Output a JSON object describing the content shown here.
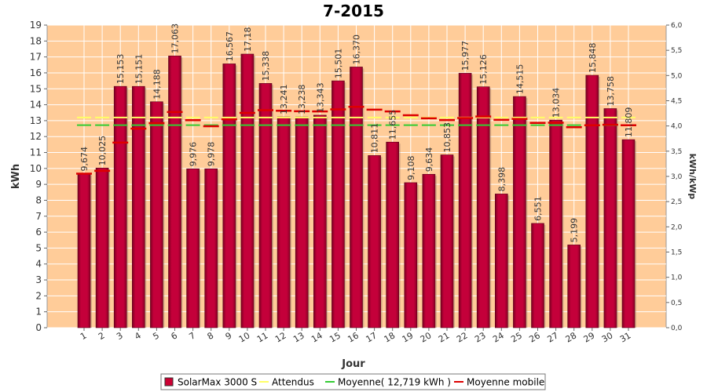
{
  "chart_data": {
    "type": "bar",
    "title": "7-2015",
    "xlabel": "Jour",
    "ylabel": "kWh",
    "ylabel_right": "kWh/kWp",
    "ylim": [
      0,
      19
    ],
    "ylim_right": [
      0.0,
      6.0
    ],
    "yticks": [
      "0",
      "1",
      "2",
      "3",
      "4",
      "5",
      "6",
      "7",
      "8",
      "9",
      "10",
      "11",
      "12",
      "13",
      "14",
      "15",
      "16",
      "17",
      "18",
      "19"
    ],
    "yticks_right": [
      "0,0",
      "0,5",
      "1,0",
      "1,5",
      "2,0",
      "2,5",
      "3,0",
      "3,5",
      "4,0",
      "4,5",
      "5,0",
      "5,5",
      "6,0"
    ],
    "categories": [
      "1",
      "2",
      "3",
      "4",
      "5",
      "6",
      "7",
      "8",
      "9",
      "10",
      "11",
      "12",
      "13",
      "14",
      "15",
      "16",
      "17",
      "18",
      "19",
      "20",
      "21",
      "22",
      "23",
      "24",
      "25",
      "26",
      "27",
      "28",
      "29",
      "30",
      "31"
    ],
    "series": [
      {
        "name": "SolarMax 3000 S",
        "kind": "bar",
        "color": "#cc0033",
        "values": [
          9.674,
          10.025,
          15.153,
          15.151,
          14.188,
          17.063,
          9.976,
          9.978,
          16.567,
          17.18,
          15.338,
          13.241,
          13.238,
          13.343,
          15.501,
          16.37,
          10.811,
          11.655,
          9.108,
          9.634,
          10.853,
          15.977,
          15.126,
          8.398,
          14.515,
          6.551,
          13.034,
          5.199,
          15.848,
          13.758,
          11.809
        ],
        "labels": [
          "9,674",
          "10,025",
          "15,153",
          "15,151",
          "14,188",
          "17,063",
          "9,976",
          "9,978",
          "16,567",
          "17,18",
          "15,338",
          "13,241",
          "13,238",
          "13,343",
          "15,501",
          "16,370",
          "10,811",
          "11,655",
          "9,108",
          "9,634",
          "10,853",
          "15,977",
          "15,126",
          "8,398",
          "14,515",
          "6,551",
          "13,034",
          "5,199",
          "15,848",
          "13,758",
          "11,809"
        ]
      },
      {
        "name": "Attendus",
        "kind": "line",
        "color": "#ffff66",
        "values": [
          13.2,
          13.2,
          13.2,
          13.2,
          13.2,
          13.2,
          13.2,
          13.2,
          13.2,
          13.2,
          13.2,
          13.2,
          13.2,
          13.2,
          13.2,
          13.2,
          13.2,
          13.2,
          13.2,
          13.2,
          13.2,
          13.2,
          13.2,
          13.2,
          13.2,
          13.2,
          13.2,
          13.2,
          13.2,
          13.2,
          13.2
        ]
      },
      {
        "name": "Moyenne( 12,719 kWh )",
        "kind": "line",
        "color": "#33cc33",
        "values": [
          12.719,
          12.719,
          12.719,
          12.719,
          12.719,
          12.719,
          12.719,
          12.719,
          12.719,
          12.719,
          12.719,
          12.719,
          12.719,
          12.719,
          12.719,
          12.719,
          12.719,
          12.719,
          12.719,
          12.719,
          12.719,
          12.719,
          12.719,
          12.719,
          12.719,
          12.719,
          12.719,
          12.719,
          12.719,
          12.719,
          12.719
        ]
      },
      {
        "name": "Moyenne mobile",
        "kind": "step",
        "color": "#dd0000",
        "values": [
          9.67,
          9.85,
          11.62,
          12.5,
          12.84,
          13.54,
          13.03,
          12.65,
          13.08,
          13.49,
          13.66,
          13.62,
          13.59,
          13.58,
          13.71,
          13.87,
          13.69,
          13.58,
          13.34,
          13.15,
          13.04,
          13.17,
          13.26,
          13.05,
          13.11,
          12.86,
          12.87,
          12.59,
          12.71,
          12.74,
          12.71
        ]
      }
    ],
    "background_color": "#ffcc99",
    "grid": true,
    "legend_position": "bottom"
  }
}
